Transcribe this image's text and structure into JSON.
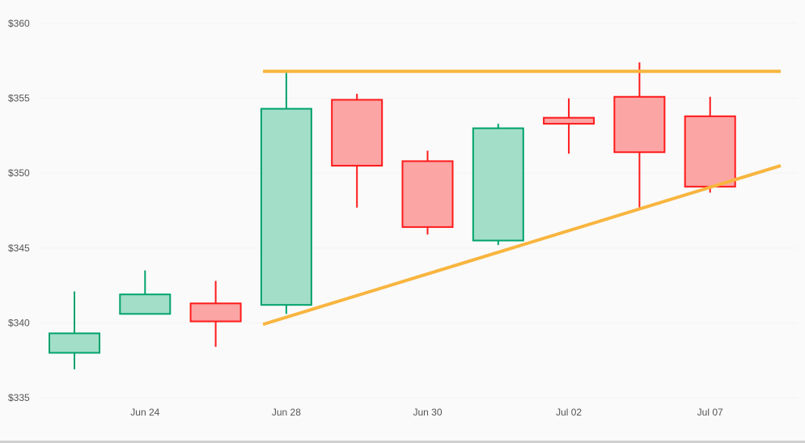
{
  "chart_data": {
    "type": "candlestick",
    "title": "",
    "xlabel": "",
    "ylabel": "",
    "ylim": [
      335,
      360
    ],
    "y_ticks": [
      "$335",
      "$340",
      "$345",
      "$350",
      "$355",
      "$360"
    ],
    "y_tick_values": [
      335,
      340,
      345,
      350,
      355,
      360
    ],
    "x_tick_labels": [
      {
        "index": 1,
        "label": "Jun 24"
      },
      {
        "index": 3,
        "label": "Jun 28"
      },
      {
        "index": 5,
        "label": "Jun 30"
      },
      {
        "index": 7,
        "label": "Jul 02"
      },
      {
        "index": 9,
        "label": "Jul 07"
      }
    ],
    "grid": false,
    "colors": {
      "up_stroke": "#00a36c",
      "up_fill": "#a3dec8",
      "down_stroke": "#ff1a1a",
      "down_fill": "#fca5a5",
      "trendline": "#f8b53f"
    },
    "candles": [
      {
        "open": 338.0,
        "high": 342.1,
        "low": 336.9,
        "close": 339.3
      },
      {
        "open": 340.6,
        "high": 343.5,
        "low": 340.6,
        "close": 341.9
      },
      {
        "open": 341.3,
        "high": 342.8,
        "low": 338.4,
        "close": 340.1
      },
      {
        "open": 341.2,
        "high": 356.7,
        "low": 340.6,
        "close": 354.3
      },
      {
        "open": 354.9,
        "high": 355.3,
        "low": 347.7,
        "close": 350.5
      },
      {
        "open": 350.8,
        "high": 351.5,
        "low": 345.9,
        "close": 346.4
      },
      {
        "open": 345.5,
        "high": 353.3,
        "low": 345.2,
        "close": 353.0
      },
      {
        "open": 353.7,
        "high": 355.0,
        "low": 351.3,
        "close": 353.3
      },
      {
        "open": 355.1,
        "high": 357.4,
        "low": 347.7,
        "close": 351.4
      },
      {
        "open": 353.8,
        "high": 355.1,
        "low": 348.7,
        "close": 349.1
      }
    ],
    "trendlines": [
      {
        "name": "",
        "from": {
          "index": 2.67,
          "value": 356.8
        },
        "to": {
          "index": 10,
          "value": 356.8
        }
      },
      {
        "name": "",
        "from": {
          "index": 2.67,
          "value": 339.9
        },
        "to": {
          "index": 10,
          "value": 350.5
        }
      }
    ]
  }
}
